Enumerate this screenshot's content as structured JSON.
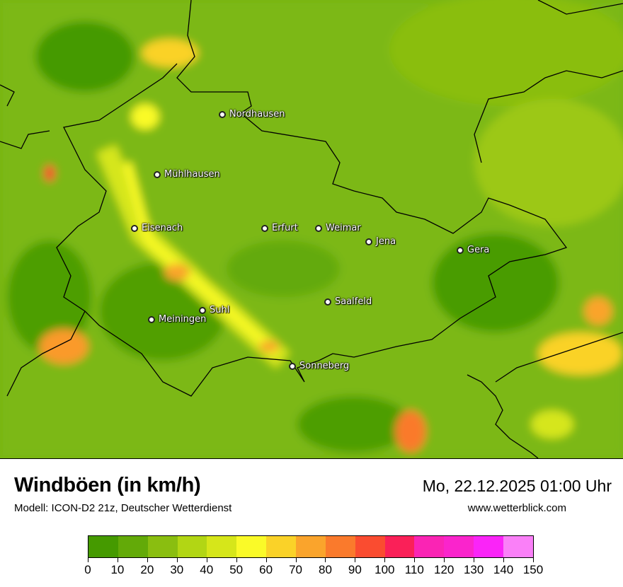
{
  "header": {
    "title": "Windböen (in km/h)",
    "subtitle": "Modell: ICON-D2 21z, Deutscher Wetterdienst",
    "datetime": "Mo, 22.12.2025 01:00 Uhr",
    "website": "www.wetterblick.com"
  },
  "map": {
    "cities": [
      {
        "name": "Nordhausen"
      },
      {
        "name": "Mühlhausen"
      },
      {
        "name": "Eisenach"
      },
      {
        "name": "Erfurt"
      },
      {
        "name": "Weimar"
      },
      {
        "name": "Jena"
      },
      {
        "name": "Gera"
      },
      {
        "name": "Saalfeld"
      },
      {
        "name": "Suhl"
      },
      {
        "name": "Meiningen"
      },
      {
        "name": "Sonneberg"
      }
    ]
  },
  "legend": {
    "unit": "km/h",
    "ticks": [
      "0",
      "10",
      "20",
      "30",
      "40",
      "50",
      "60",
      "70",
      "80",
      "90",
      "100",
      "110",
      "120",
      "130",
      "140",
      "150"
    ],
    "colors": [
      "#459a00",
      "#63aa08",
      "#8abe10",
      "#b2d614",
      "#d6e61a",
      "#fafa28",
      "#fad228",
      "#faa42c",
      "#fa7a2c",
      "#fa4c30",
      "#fa2058",
      "#fa24b4",
      "#fa24cc",
      "#fa24f8",
      "#fa80f8"
    ]
  }
}
